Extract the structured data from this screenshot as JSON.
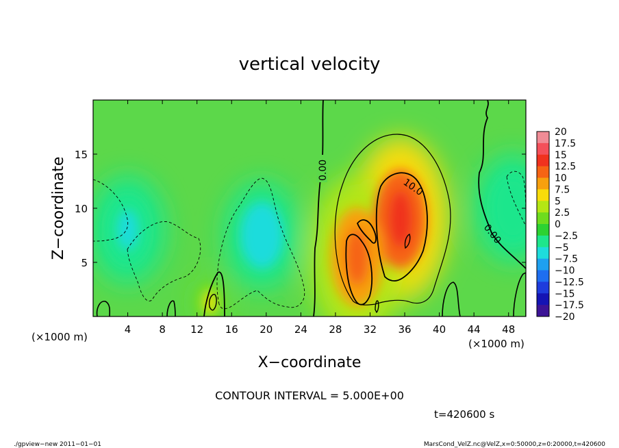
{
  "chart_data": {
    "type": "heatmap",
    "title": "vertical velocity",
    "xlabel": "X−coordinate",
    "ylabel": "Z−coordinate",
    "x_units_left": "(×1000 m)",
    "x_units_right": "(×1000 m)",
    "xlim": [
      0,
      50
    ],
    "ylim": [
      0,
      20
    ],
    "x_ticks": [
      4,
      8,
      12,
      16,
      20,
      24,
      28,
      32,
      36,
      40,
      44,
      48
    ],
    "y_ticks": [
      5,
      10,
      15
    ],
    "colorbar": {
      "levels": [
        20,
        17.5,
        15,
        12.5,
        10,
        7.5,
        5,
        2.5,
        0,
        -2.5,
        -5,
        -7.5,
        -10,
        -12.5,
        -15,
        -17.5,
        -20
      ],
      "labels": [
        "20",
        "17.5",
        "15",
        "12.5",
        "10",
        "7.5",
        "5",
        "2.5",
        "0",
        "−2.5",
        "−5",
        "−7.5",
        "−10",
        "−12.5",
        "−15",
        "−17.5",
        "−20"
      ],
      "colors": [
        "#f08c96",
        "#f4505a",
        "#f0321e",
        "#f66414",
        "#f7a00e",
        "#f8dc0a",
        "#b4e614",
        "#6edc1e",
        "#2cd232",
        "#1ee68c",
        "#1edcdc",
        "#1ea0f0",
        "#1e6ef0",
        "#1e3cdc",
        "#1414b4",
        "#3c1496",
        "#6e1eaa"
      ]
    },
    "contour_labels": [
      "0.00",
      "10.0",
      "0.00"
    ],
    "contour_interval_text": "CONTOUR INTERVAL = 5.000E+00",
    "time_text": "t=420600 s",
    "features": [
      {
        "kind": "updraft",
        "x": 35.5,
        "z": 9.0,
        "w": 15.0
      },
      {
        "kind": "updraft",
        "x": 30.5,
        "z": 5.5,
        "w": 13.0
      },
      {
        "kind": "updraft",
        "x": 13.5,
        "z": 1.3,
        "w": 7.0
      },
      {
        "kind": "downdraft",
        "x": 19.5,
        "z": 7.5,
        "w": -5.5
      },
      {
        "kind": "downdraft",
        "x": 4.0,
        "z": 8.0,
        "w": -4.5
      },
      {
        "kind": "downdraft",
        "x": 48.5,
        "z": 10.0,
        "w": -3.0
      }
    ]
  },
  "footer": {
    "left": "./gpview−new   2011−01−01",
    "right": "MarsCond_VelZ.nc@VelZ,x=0:50000,z=0:20000,t=420600"
  }
}
